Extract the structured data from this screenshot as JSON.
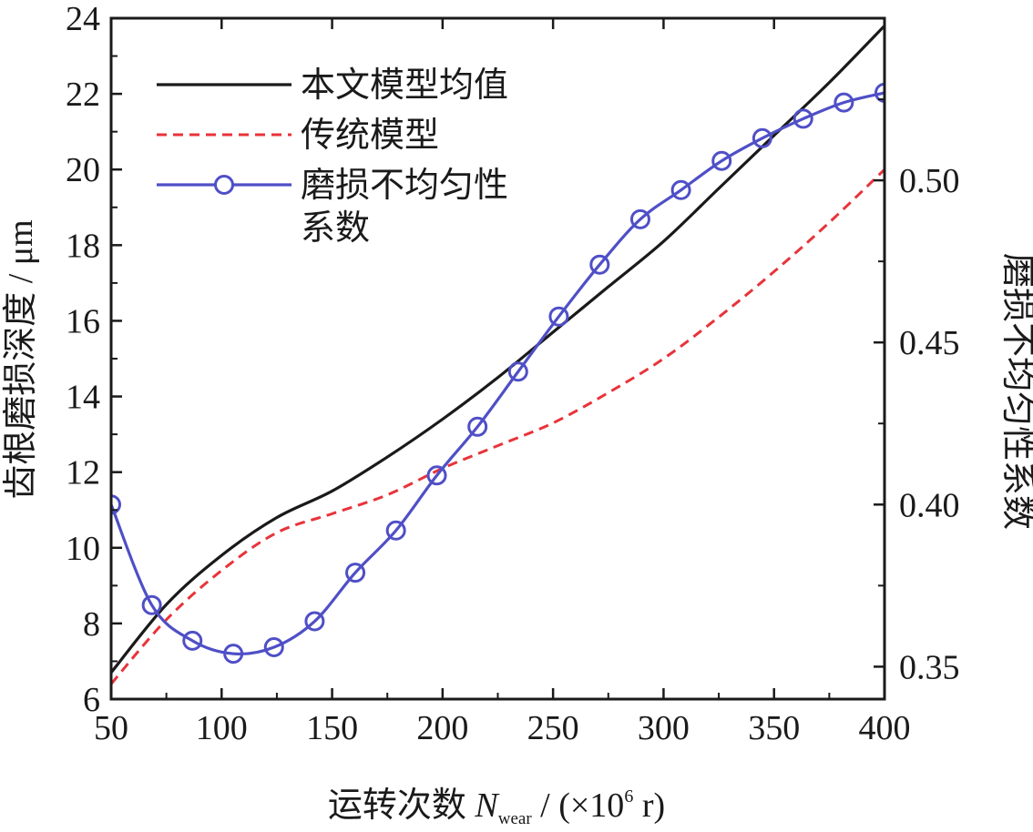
{
  "chart_data": {
    "type": "line",
    "xlabel_prefix": "运转次数",
    "xlabel_var": "N",
    "xlabel_sub": "wear",
    "xlabel_unit_a": " / (×10",
    "xlabel_unit_sup": "6",
    "xlabel_unit_b": " r)",
    "ylabel_left": "齿根磨损深度 / μm",
    "ylabel_right": "磨损不均匀性系数",
    "xlim": [
      50,
      400
    ],
    "ylim_left": [
      6,
      24
    ],
    "ylim_right": [
      0.34,
      0.55
    ],
    "x_ticks": [
      50,
      100,
      150,
      200,
      250,
      300,
      350,
      400
    ],
    "y_left_ticks": [
      6,
      8,
      10,
      12,
      14,
      16,
      18,
      20,
      22,
      24
    ],
    "y_right_ticks": [
      "0.35",
      "0.40",
      "0.45",
      "0.50"
    ],
    "grid": false,
    "legend_position": "top-left",
    "series": [
      {
        "name": "本文模型均值",
        "axis": "left",
        "color": "#1a1a1a",
        "style": "solid",
        "x": [
          50,
          75,
          100,
          125,
          150,
          175,
          200,
          225,
          250,
          275,
          300,
          325,
          350,
          375,
          400
        ],
        "y": [
          6.7,
          8.5,
          9.8,
          10.8,
          11.5,
          12.4,
          13.4,
          14.5,
          15.7,
          16.9,
          18.1,
          19.5,
          20.9,
          22.3,
          23.8
        ]
      },
      {
        "name": "传统模型",
        "axis": "left",
        "color": "#e8333a",
        "style": "dashed",
        "x": [
          50,
          75,
          100,
          125,
          150,
          175,
          200,
          225,
          250,
          275,
          300,
          325,
          350,
          375,
          400
        ],
        "y": [
          6.4,
          8.1,
          9.4,
          10.4,
          10.9,
          11.4,
          12.1,
          12.7,
          13.3,
          14.1,
          15.0,
          16.1,
          17.3,
          18.6,
          20.0
        ]
      },
      {
        "name_line1": "磨损不均匀性",
        "name_line2": "系数",
        "axis": "right",
        "color": "#4f4fc7",
        "style": "solid-circle-markers",
        "x": [
          50,
          68.4,
          86.8,
          105.3,
          123.7,
          142.1,
          160.5,
          178.9,
          197.4,
          215.8,
          234.2,
          252.6,
          271.1,
          289.5,
          307.9,
          326.3,
          344.7,
          363.2,
          381.6,
          400
        ],
        "y": [
          0.4,
          0.369,
          0.358,
          0.354,
          0.356,
          0.364,
          0.379,
          0.392,
          0.409,
          0.424,
          0.441,
          0.458,
          0.474,
          0.488,
          0.497,
          0.506,
          0.513,
          0.519,
          0.524,
          0.527
        ]
      }
    ]
  }
}
